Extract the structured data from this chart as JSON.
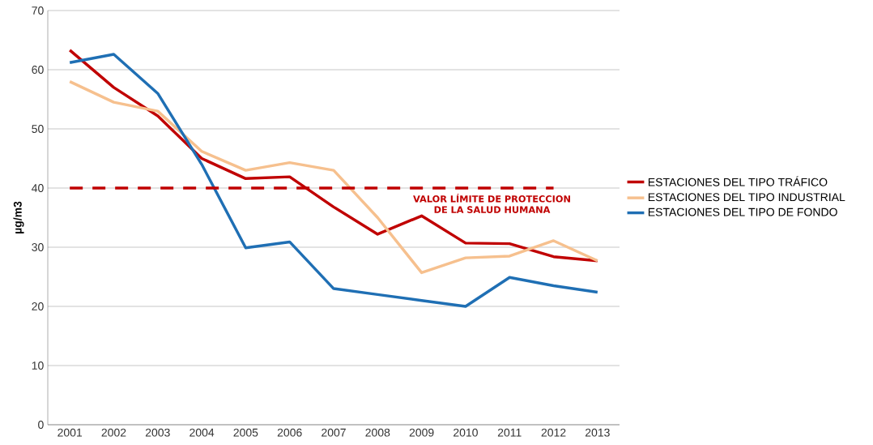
{
  "chart_data": {
    "type": "line",
    "ylabel": "µg/m3",
    "categories": [
      "2001",
      "2002",
      "2003",
      "2004",
      "2005",
      "2006",
      "2007",
      "2008",
      "2009",
      "2010",
      "2011",
      "2012",
      "2013"
    ],
    "series": [
      {
        "name": "ESTACIONES DEL TIPO TRÁFICO",
        "color": "#c00000",
        "values": [
          63.3,
          57,
          52.2,
          45,
          41.6,
          41.9,
          36.8,
          32.2,
          35.3,
          30.7,
          30.6,
          28.4,
          27.7
        ]
      },
      {
        "name": "ESTACIONES DEL TIPO  INDUSTRIAL",
        "color": "#f6c08e",
        "values": [
          58,
          54.5,
          53,
          46.2,
          43,
          44.3,
          43,
          35,
          25.7,
          28.2,
          28.5,
          31.1,
          27.7
        ]
      },
      {
        "name": "ESTACIONES DEL TIPO DE FONDO",
        "color": "#1f6fb4",
        "values": [
          61.2,
          62.6,
          56,
          44,
          29.9,
          30.9,
          23,
          22,
          21,
          20,
          24.9,
          23.5,
          22.4
        ]
      }
    ],
    "ref_lines": [
      {
        "axis": "y",
        "value": 40,
        "label": "VALOR LÍMITE DE PROTECCION DE LA SALUD HUMANA",
        "color": "#c00000",
        "line_style": "dashed"
      }
    ],
    "ylim": [
      0,
      70
    ],
    "yticks": [
      0,
      10,
      20,
      30,
      40,
      50,
      60,
      70
    ],
    "grid": "y",
    "legend": "right",
    "line_style": "solid"
  }
}
